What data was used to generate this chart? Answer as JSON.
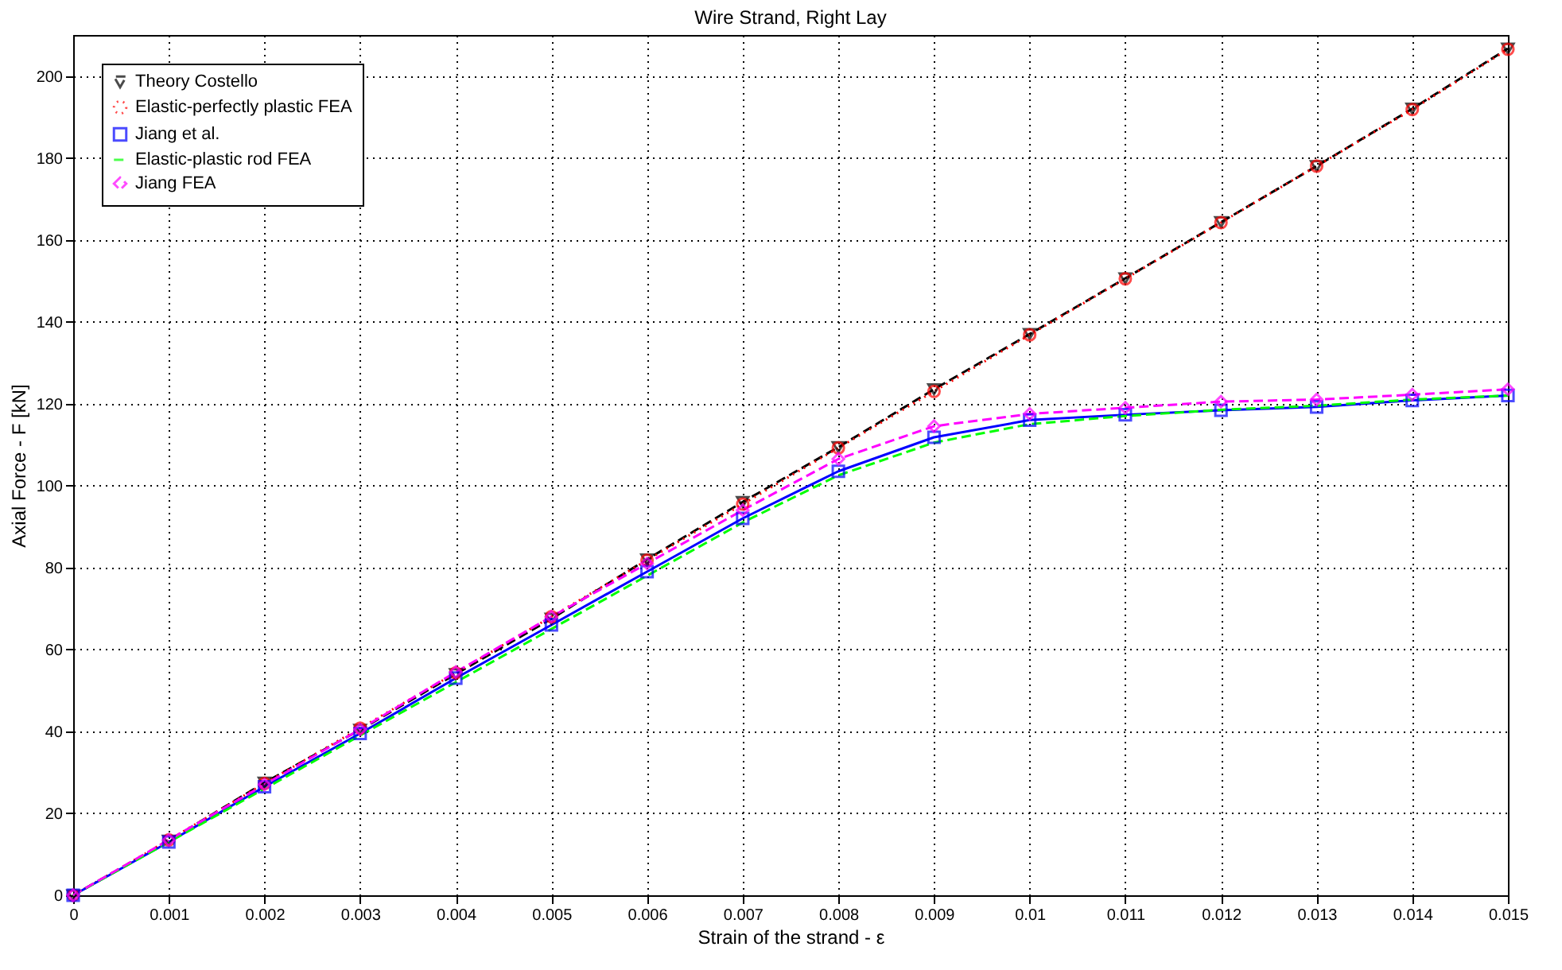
{
  "chart_data": {
    "type": "line",
    "title": "Wire Strand, Right Lay",
    "xlabel": "Strain of the strand - ε",
    "ylabel": "Axial Force - F [kN]",
    "x": [
      0,
      0.001,
      0.002,
      0.003,
      0.004,
      0.005,
      0.006,
      0.007,
      0.008,
      0.009,
      0.01,
      0.011,
      0.012,
      0.013,
      0.014,
      0.015
    ],
    "xlim": [
      0,
      0.015
    ],
    "xticks": [
      0,
      0.001,
      0.002,
      0.003,
      0.004,
      0.005,
      0.006,
      0.007,
      0.008,
      0.009,
      0.01,
      0.011,
      0.012,
      0.013,
      0.014,
      0.015
    ],
    "ylim": [
      0,
      210
    ],
    "yticks": [
      0,
      20,
      40,
      60,
      80,
      100,
      120,
      140,
      160,
      180,
      200
    ],
    "grid": true,
    "legend": "top left",
    "series": [
      {
        "name": "Theory Costello",
        "color": "#000000",
        "marker": "triangle",
        "line_style": "dashed",
        "values": [
          0,
          13.3,
          27.5,
          40.4,
          54,
          67.5,
          82,
          96,
          109.4,
          123.5,
          137,
          150.6,
          164.3,
          178,
          192,
          206.7
        ]
      },
      {
        "name": "Elastic-perfectly plastic FEA",
        "color": "#ff0000",
        "marker": "circle",
        "line_style": "dotted",
        "values": [
          0,
          13.5,
          27.3,
          40.8,
          54.3,
          68,
          81.8,
          95.5,
          109.2,
          123,
          136.8,
          150.5,
          164.2,
          178,
          191.8,
          206.5
        ]
      },
      {
        "name": "Jiang et al.",
        "color": "#0000ff",
        "marker": "square",
        "line_style": "solid",
        "values": [
          0,
          13,
          26.5,
          39.5,
          53,
          66,
          79,
          92,
          103.5,
          111.8,
          116,
          117.3,
          118.4,
          119.2,
          120.8,
          122
        ]
      },
      {
        "name": "Elastic-plastic rod FEA",
        "color": "#00ff00",
        "marker": "none",
        "line_style": "dashed",
        "values": [
          0,
          13,
          26,
          39,
          52,
          65,
          78,
          91,
          102.5,
          110.5,
          115,
          117,
          118.5,
          119.5,
          121,
          122
        ]
      },
      {
        "name": "Jiang FEA",
        "color": "#ff00ff",
        "marker": "diamond",
        "line_style": "dashed",
        "values": [
          0,
          13.5,
          27,
          40.5,
          54.5,
          68,
          81,
          94,
          106.5,
          114.5,
          117.5,
          119,
          120.5,
          121,
          122.2,
          123.5
        ]
      }
    ]
  }
}
